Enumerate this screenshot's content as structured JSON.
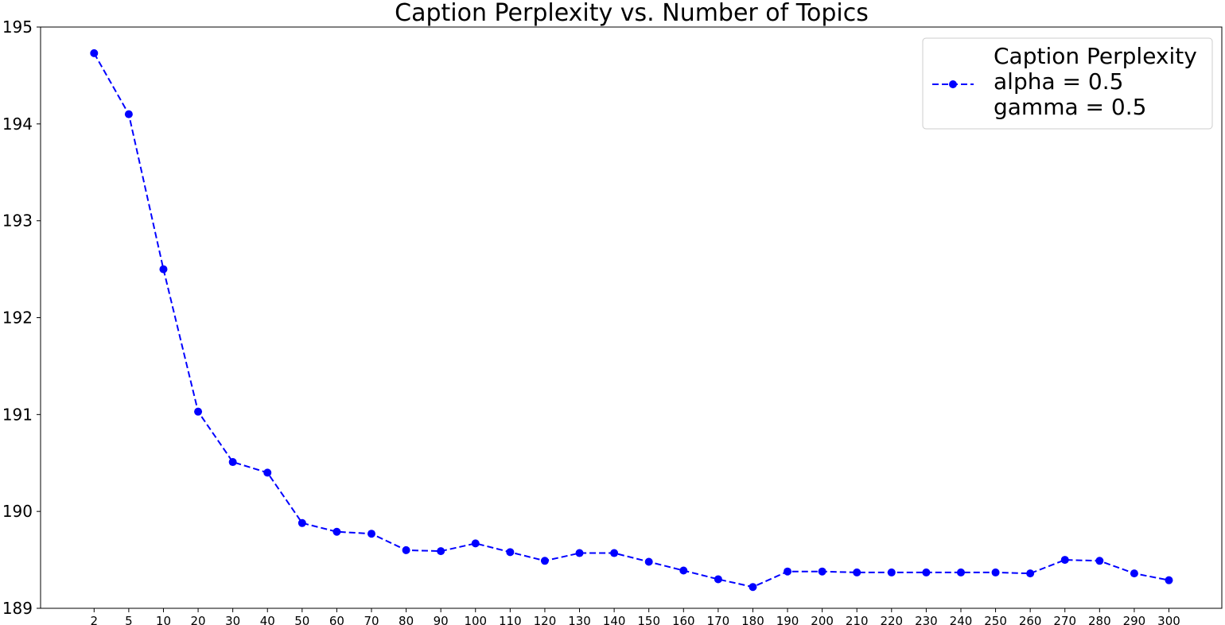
{
  "chart_data": {
    "type": "line",
    "title": "Caption Perplexity vs. Number of Topics",
    "xlabel": "",
    "ylabel": "",
    "categories": [
      "2",
      "5",
      "10",
      "20",
      "30",
      "40",
      "50",
      "60",
      "70",
      "80",
      "90",
      "100",
      "110",
      "120",
      "130",
      "140",
      "150",
      "160",
      "170",
      "180",
      "190",
      "200",
      "210",
      "220",
      "230",
      "240",
      "250",
      "260",
      "270",
      "280",
      "290",
      "300"
    ],
    "series": [
      {
        "name": "Caption Perplexity\nalpha = 0.5\ngamma = 0.5",
        "color": "#0000ff",
        "line_style": "dashed",
        "marker": "circle",
        "values": [
          194.73,
          194.1,
          192.5,
          191.03,
          190.51,
          190.4,
          189.88,
          189.79,
          189.77,
          189.6,
          189.59,
          189.67,
          189.58,
          189.49,
          189.57,
          189.57,
          189.48,
          189.39,
          189.3,
          189.22,
          189.38,
          189.38,
          189.37,
          189.37,
          189.37,
          189.37,
          189.37,
          189.36,
          189.5,
          189.49,
          189.36,
          189.29
        ]
      }
    ],
    "ylim": [
      189,
      195
    ],
    "yticks": [
      "189",
      "190",
      "191",
      "192",
      "193",
      "194",
      "195"
    ],
    "grid": false,
    "legend_position": "top-right"
  }
}
